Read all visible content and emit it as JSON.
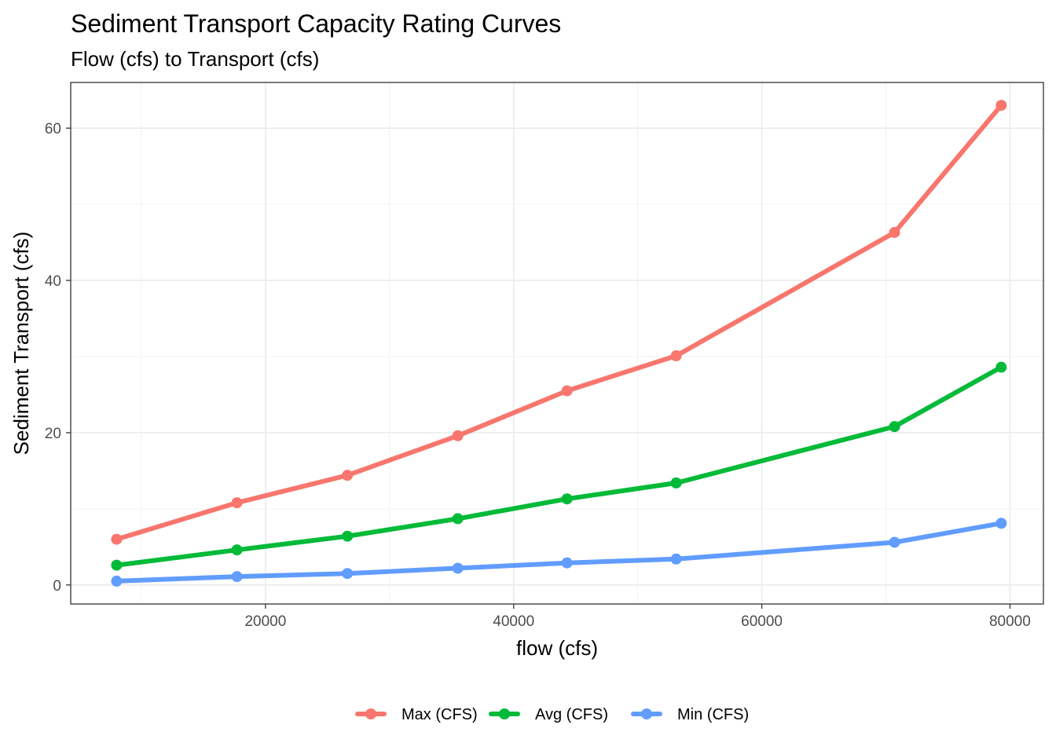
{
  "chart_data": {
    "type": "line",
    "title": "Sediment Transport Capacity Rating Curves",
    "subtitle": "Flow (cfs) to Transport (cfs)",
    "xlabel": "flow (cfs)",
    "ylabel": "Sediment Transport (cfs)",
    "xlim": [
      4300,
      82700
    ],
    "ylim": [
      -2.5,
      66.0
    ],
    "x_ticks": [
      20000,
      40000,
      60000,
      80000
    ],
    "y_ticks": [
      0,
      20,
      40,
      60
    ],
    "x_tick_labels": [
      "20000",
      "40000",
      "60000",
      "80000"
    ],
    "y_tick_labels": [
      "0",
      "20",
      "40",
      "60"
    ],
    "grid": true,
    "legend_position": "bottom",
    "x": [
      8000,
      17700,
      26600,
      35500,
      44300,
      53100,
      70700,
      79300
    ],
    "series": [
      {
        "name": "Max (CFS)",
        "color": "#F8766D",
        "values": [
          6.0,
          10.8,
          14.4,
          19.6,
          25.5,
          30.1,
          46.3,
          63.0
        ]
      },
      {
        "name": "Avg (CFS)",
        "color": "#00BA38",
        "values": [
          2.6,
          4.6,
          6.4,
          8.7,
          11.3,
          13.4,
          20.8,
          28.6
        ]
      },
      {
        "name": "Min (CFS)",
        "color": "#619CFF",
        "values": [
          0.5,
          1.1,
          1.5,
          2.2,
          2.9,
          3.4,
          5.6,
          8.1
        ]
      }
    ]
  }
}
